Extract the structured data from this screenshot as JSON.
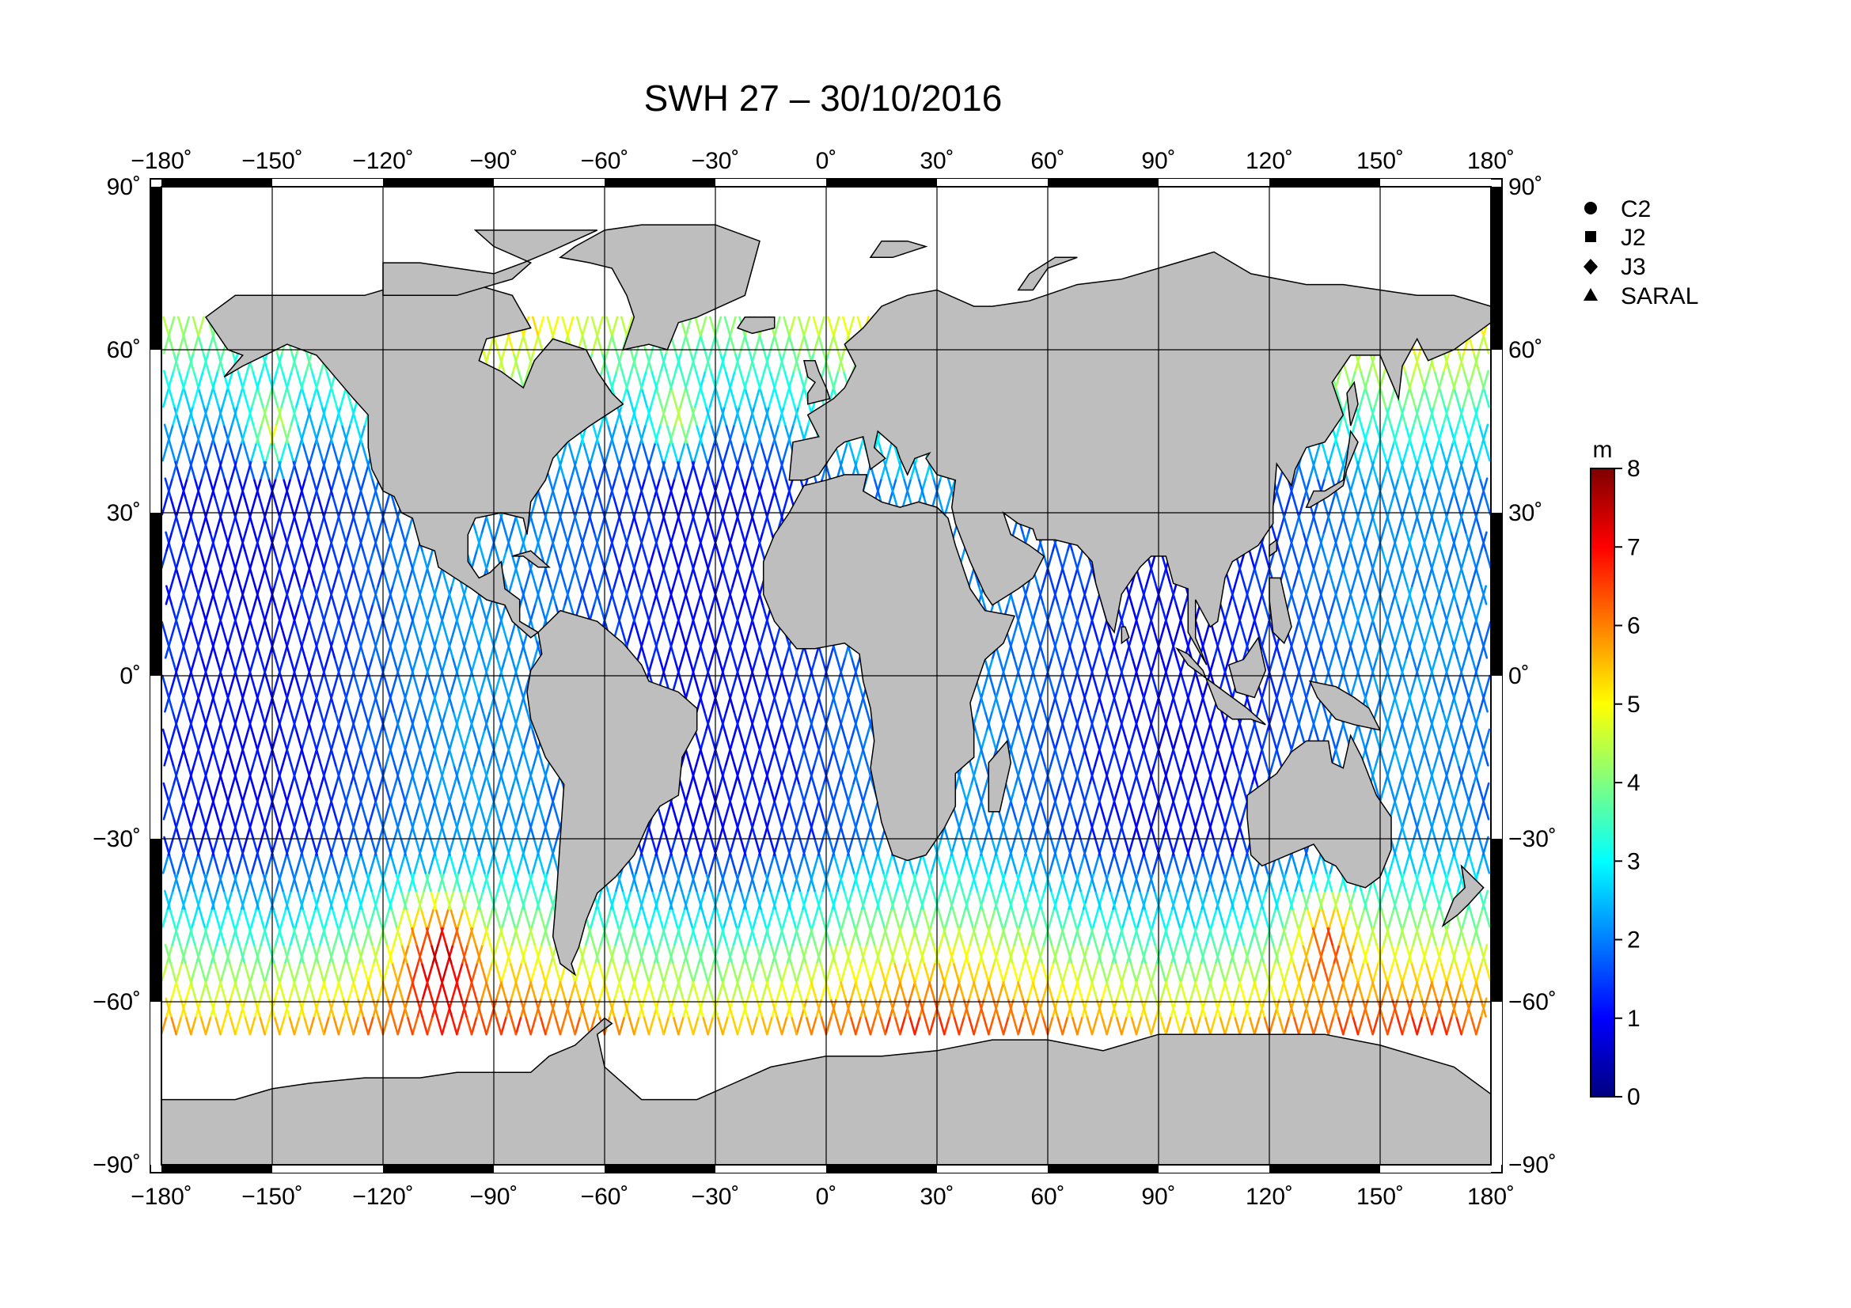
{
  "title": "SWH 27 – 30/10/2016",
  "map": {
    "projection": "equirectangular",
    "lon_range": [
      -180,
      180
    ],
    "lat_range": [
      -90,
      90
    ],
    "land_color": "#bebebe",
    "ocean_color": "#ffffff",
    "grid": true,
    "lon_ticks": [
      -180,
      -150,
      -120,
      -90,
      -60,
      -30,
      0,
      30,
      60,
      90,
      120,
      150,
      180
    ],
    "lat_ticks": [
      90,
      60,
      30,
      0,
      -30,
      -60,
      -90
    ],
    "lon_tick_labels": [
      "−180˚",
      "−150˚",
      "−120˚",
      "−90˚",
      "−60˚",
      "−30˚",
      "0˚",
      "30˚",
      "60˚",
      "90˚",
      "120˚",
      "150˚",
      "180˚"
    ],
    "lat_tick_labels": [
      "90˚",
      "60˚",
      "30˚",
      "0˚",
      "−30˚",
      "−60˚",
      "−90˚"
    ]
  },
  "legend": {
    "placement": "top-right",
    "items": [
      {
        "label": "C2",
        "marker": "circle"
      },
      {
        "label": "J2",
        "marker": "square"
      },
      {
        "label": "J3",
        "marker": "diamond"
      },
      {
        "label": "SARAL",
        "marker": "triangle"
      }
    ]
  },
  "colorbar": {
    "unit": "m",
    "min": 0,
    "max": 8,
    "ticks": [
      0,
      1,
      2,
      3,
      4,
      5,
      6,
      7,
      8
    ],
    "colormap": [
      "#00007f",
      "#0000ff",
      "#007fff",
      "#00ffff",
      "#7fff7f",
      "#ffff00",
      "#ff7f00",
      "#ff0000",
      "#7f0000"
    ]
  },
  "chart_data": {
    "type": "scatter",
    "title": "SWH 27 – 30/10/2016",
    "xlabel": "",
    "ylabel": "",
    "xlim": [
      -180,
      180
    ],
    "ylim": [
      -90,
      90
    ],
    "value_unit": "m",
    "value_range": [
      0,
      8
    ],
    "series": [
      {
        "name": "C2"
      },
      {
        "name": "J2"
      },
      {
        "name": "J3"
      },
      {
        "name": "SARAL"
      }
    ]
  }
}
